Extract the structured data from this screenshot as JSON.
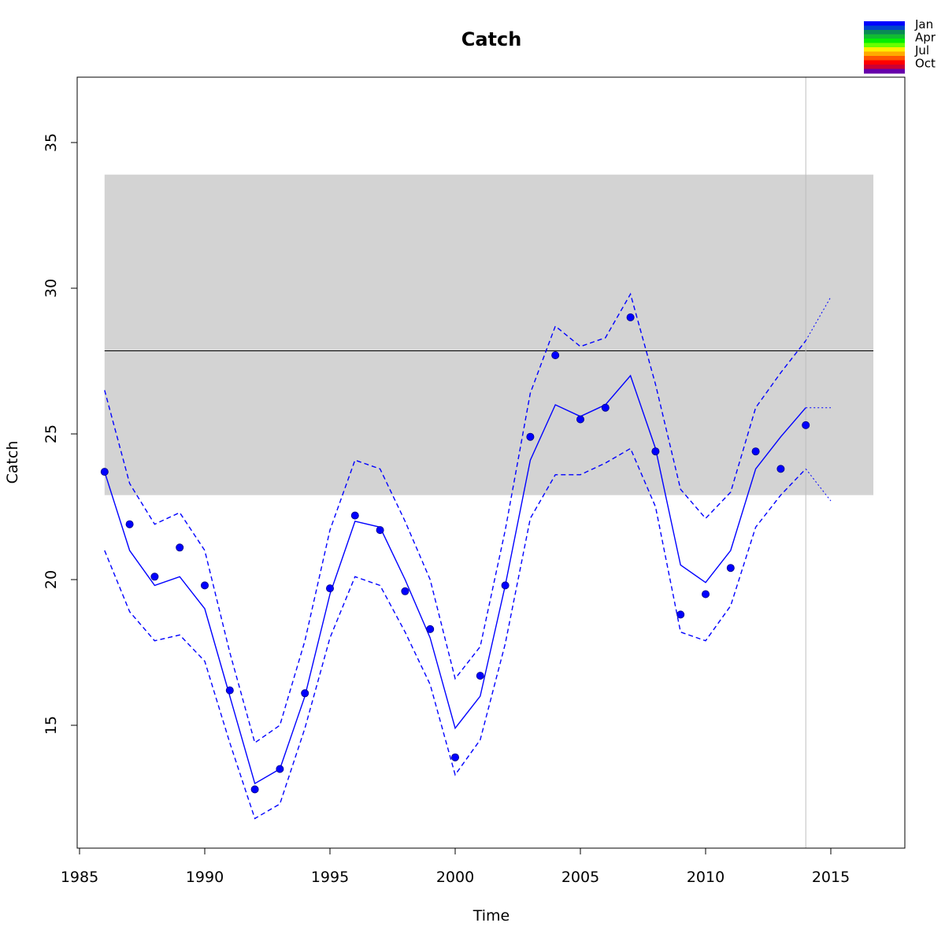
{
  "chart_data": {
    "type": "line",
    "title": "Catch",
    "xlabel": "Time",
    "ylabel": "Catch",
    "xlim": [
      1985,
      2017
    ],
    "ylim": [
      11,
      37
    ],
    "x_ticks": [
      1985,
      1990,
      1995,
      2000,
      2005,
      2010,
      2015
    ],
    "y_ticks": [
      15,
      20,
      25,
      30,
      35
    ],
    "grid": false,
    "band": {
      "x_start": 1986,
      "x_end": 2016.7,
      "y_low": 22.9,
      "y_high": 33.9,
      "color": "#d3d3d3"
    },
    "reference_line": {
      "y": 27.85,
      "color": "#000000"
    },
    "vertical_line": {
      "x": 2014,
      "color": "#bebebe"
    },
    "observed_points": {
      "color": "#0000ff",
      "x": [
        1986,
        1987,
        1988,
        1989,
        1990,
        1991,
        1992,
        1993,
        1994,
        1995,
        1996,
        1997,
        1998,
        1999,
        2000,
        2001,
        2002,
        2003,
        2004,
        2005,
        2006,
        2007,
        2008,
        2009,
        2010,
        2011,
        2012,
        2013,
        2014
      ],
      "y": [
        23.7,
        21.9,
        20.1,
        21.1,
        19.8,
        16.2,
        12.8,
        13.5,
        16.1,
        19.7,
        22.2,
        21.7,
        19.6,
        18.3,
        13.9,
        16.7,
        19.8,
        24.9,
        27.7,
        25.5,
        25.9,
        29.0,
        24.4,
        18.8,
        19.5,
        20.4,
        24.4,
        23.8,
        25.3
      ]
    },
    "series": [
      {
        "style": "solid",
        "color": "#0000ff",
        "x": [
          1986,
          1987,
          1988,
          1989,
          1990,
          1991,
          1992,
          1993,
          1994,
          1995,
          1996,
          1997,
          1998,
          1999,
          2000,
          2001,
          2002,
          2003,
          2004,
          2005,
          2006,
          2007,
          2008,
          2009,
          2010,
          2011,
          2012,
          2013,
          2014
        ],
        "y": [
          23.7,
          21.0,
          19.8,
          20.1,
          19.0,
          16.0,
          13.0,
          13.5,
          16.0,
          19.5,
          22.0,
          21.8,
          20.0,
          18.0,
          14.9,
          16.0,
          19.8,
          24.1,
          26.0,
          25.6,
          26.0,
          27.0,
          24.5,
          20.5,
          19.9,
          21.0,
          23.8,
          24.9,
          25.9
        ]
      },
      {
        "style": "dashed",
        "color": "#0000ff",
        "x": [
          1986,
          1987,
          1988,
          1989,
          1990,
          1991,
          1992,
          1993,
          1994,
          1995,
          1996,
          1997,
          1998,
          1999,
          2000,
          2001,
          2002,
          2003,
          2004,
          2005,
          2006,
          2007,
          2008,
          2009,
          2010,
          2011,
          2012,
          2013,
          2014
        ],
        "y": [
          26.5,
          23.3,
          21.9,
          22.3,
          21.0,
          17.5,
          14.4,
          15.0,
          17.9,
          21.7,
          24.1,
          23.8,
          22.0,
          20.0,
          16.6,
          17.7,
          21.7,
          26.4,
          28.7,
          28.0,
          28.3,
          29.8,
          26.7,
          23.1,
          22.1,
          23.0,
          25.9,
          27.1,
          28.2
        ]
      },
      {
        "style": "dashed",
        "color": "#0000ff",
        "x": [
          1986,
          1987,
          1988,
          1989,
          1990,
          1991,
          1992,
          1993,
          1994,
          1995,
          1996,
          1997,
          1998,
          1999,
          2000,
          2001,
          2002,
          2003,
          2004,
          2005,
          2006,
          2007,
          2008,
          2009,
          2010,
          2011,
          2012,
          2013,
          2014
        ],
        "y": [
          21.0,
          18.9,
          17.9,
          18.1,
          17.2,
          14.4,
          11.8,
          12.3,
          14.9,
          18.0,
          20.1,
          19.8,
          18.2,
          16.4,
          13.3,
          14.5,
          17.8,
          22.1,
          23.6,
          23.6,
          24.0,
          24.5,
          22.5,
          18.2,
          17.9,
          19.1,
          21.8,
          22.9,
          23.8
        ]
      },
      {
        "style": "dotted",
        "color": "#0000ff",
        "x": [
          2014,
          2015
        ],
        "y": [
          25.9,
          25.9
        ]
      },
      {
        "style": "dotted",
        "color": "#0000ff",
        "x": [
          2014,
          2015
        ],
        "y": [
          28.2,
          29.7
        ]
      },
      {
        "style": "dotted",
        "color": "#0000ff",
        "x": [
          2014,
          2015
        ],
        "y": [
          23.8,
          22.7
        ]
      }
    ],
    "legend": {
      "placement": "top-right",
      "labels": [
        "Jan",
        "Apr",
        "Jul",
        "Oct"
      ],
      "colors": [
        "#0000ff",
        "#0044cc",
        "#0a8a55",
        "#11bb33",
        "#00ee00",
        "#66ff00",
        "#ffee00",
        "#ffaa00",
        "#ff5500",
        "#ff0000",
        "#cc0033",
        "#6600aa"
      ]
    }
  }
}
